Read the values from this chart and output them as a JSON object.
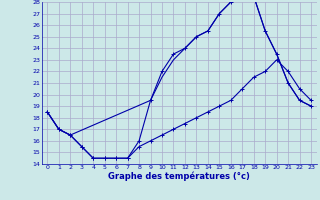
{
  "xlabel": "Graphe des températures (°c)",
  "bg_color": "#cce8e8",
  "grid_color": "#aaaacc",
  "line_color": "#0000aa",
  "xlim": [
    -0.5,
    23.5
  ],
  "ylim": [
    14,
    28
  ],
  "xticks": [
    0,
    1,
    2,
    3,
    4,
    5,
    6,
    7,
    8,
    9,
    10,
    11,
    12,
    13,
    14,
    15,
    16,
    17,
    18,
    19,
    20,
    21,
    22,
    23
  ],
  "yticks": [
    14,
    15,
    16,
    17,
    18,
    19,
    20,
    21,
    22,
    23,
    24,
    25,
    26,
    27,
    28
  ],
  "line1_x": [
    0,
    1,
    2,
    3,
    4,
    5,
    6,
    7,
    8,
    9,
    10,
    11,
    12,
    13,
    14,
    15,
    16,
    17,
    18,
    19,
    20,
    21,
    22,
    23
  ],
  "line1_y": [
    18.5,
    17.0,
    16.5,
    15.5,
    14.5,
    14.5,
    14.5,
    14.5,
    16.0,
    19.5,
    22.0,
    23.5,
    24.0,
    25.0,
    25.5,
    27.0,
    28.0,
    28.5,
    28.5,
    25.5,
    23.5,
    21.0,
    19.5,
    19.0
  ],
  "line2_x": [
    0,
    1,
    2,
    3,
    4,
    5,
    6,
    7,
    8,
    9,
    10,
    11,
    12,
    13,
    14,
    15,
    16,
    17,
    18,
    19,
    20,
    21,
    22,
    23
  ],
  "line2_y": [
    18.5,
    17.0,
    16.5,
    15.5,
    14.5,
    14.5,
    14.5,
    14.5,
    15.5,
    16.0,
    16.5,
    17.0,
    17.5,
    18.0,
    18.5,
    19.0,
    19.5,
    20.5,
    21.5,
    22.0,
    23.0,
    22.0,
    20.5,
    19.5
  ],
  "line3_x": [
    0,
    1,
    2,
    9,
    10,
    11,
    12,
    13,
    14,
    15,
    16,
    17,
    18,
    19,
    20,
    21,
    22,
    23
  ],
  "line3_y": [
    18.5,
    17.0,
    16.5,
    19.5,
    21.5,
    23.0,
    24.0,
    25.0,
    25.5,
    27.0,
    28.0,
    28.5,
    28.5,
    25.5,
    23.5,
    21.0,
    19.5,
    19.0
  ]
}
